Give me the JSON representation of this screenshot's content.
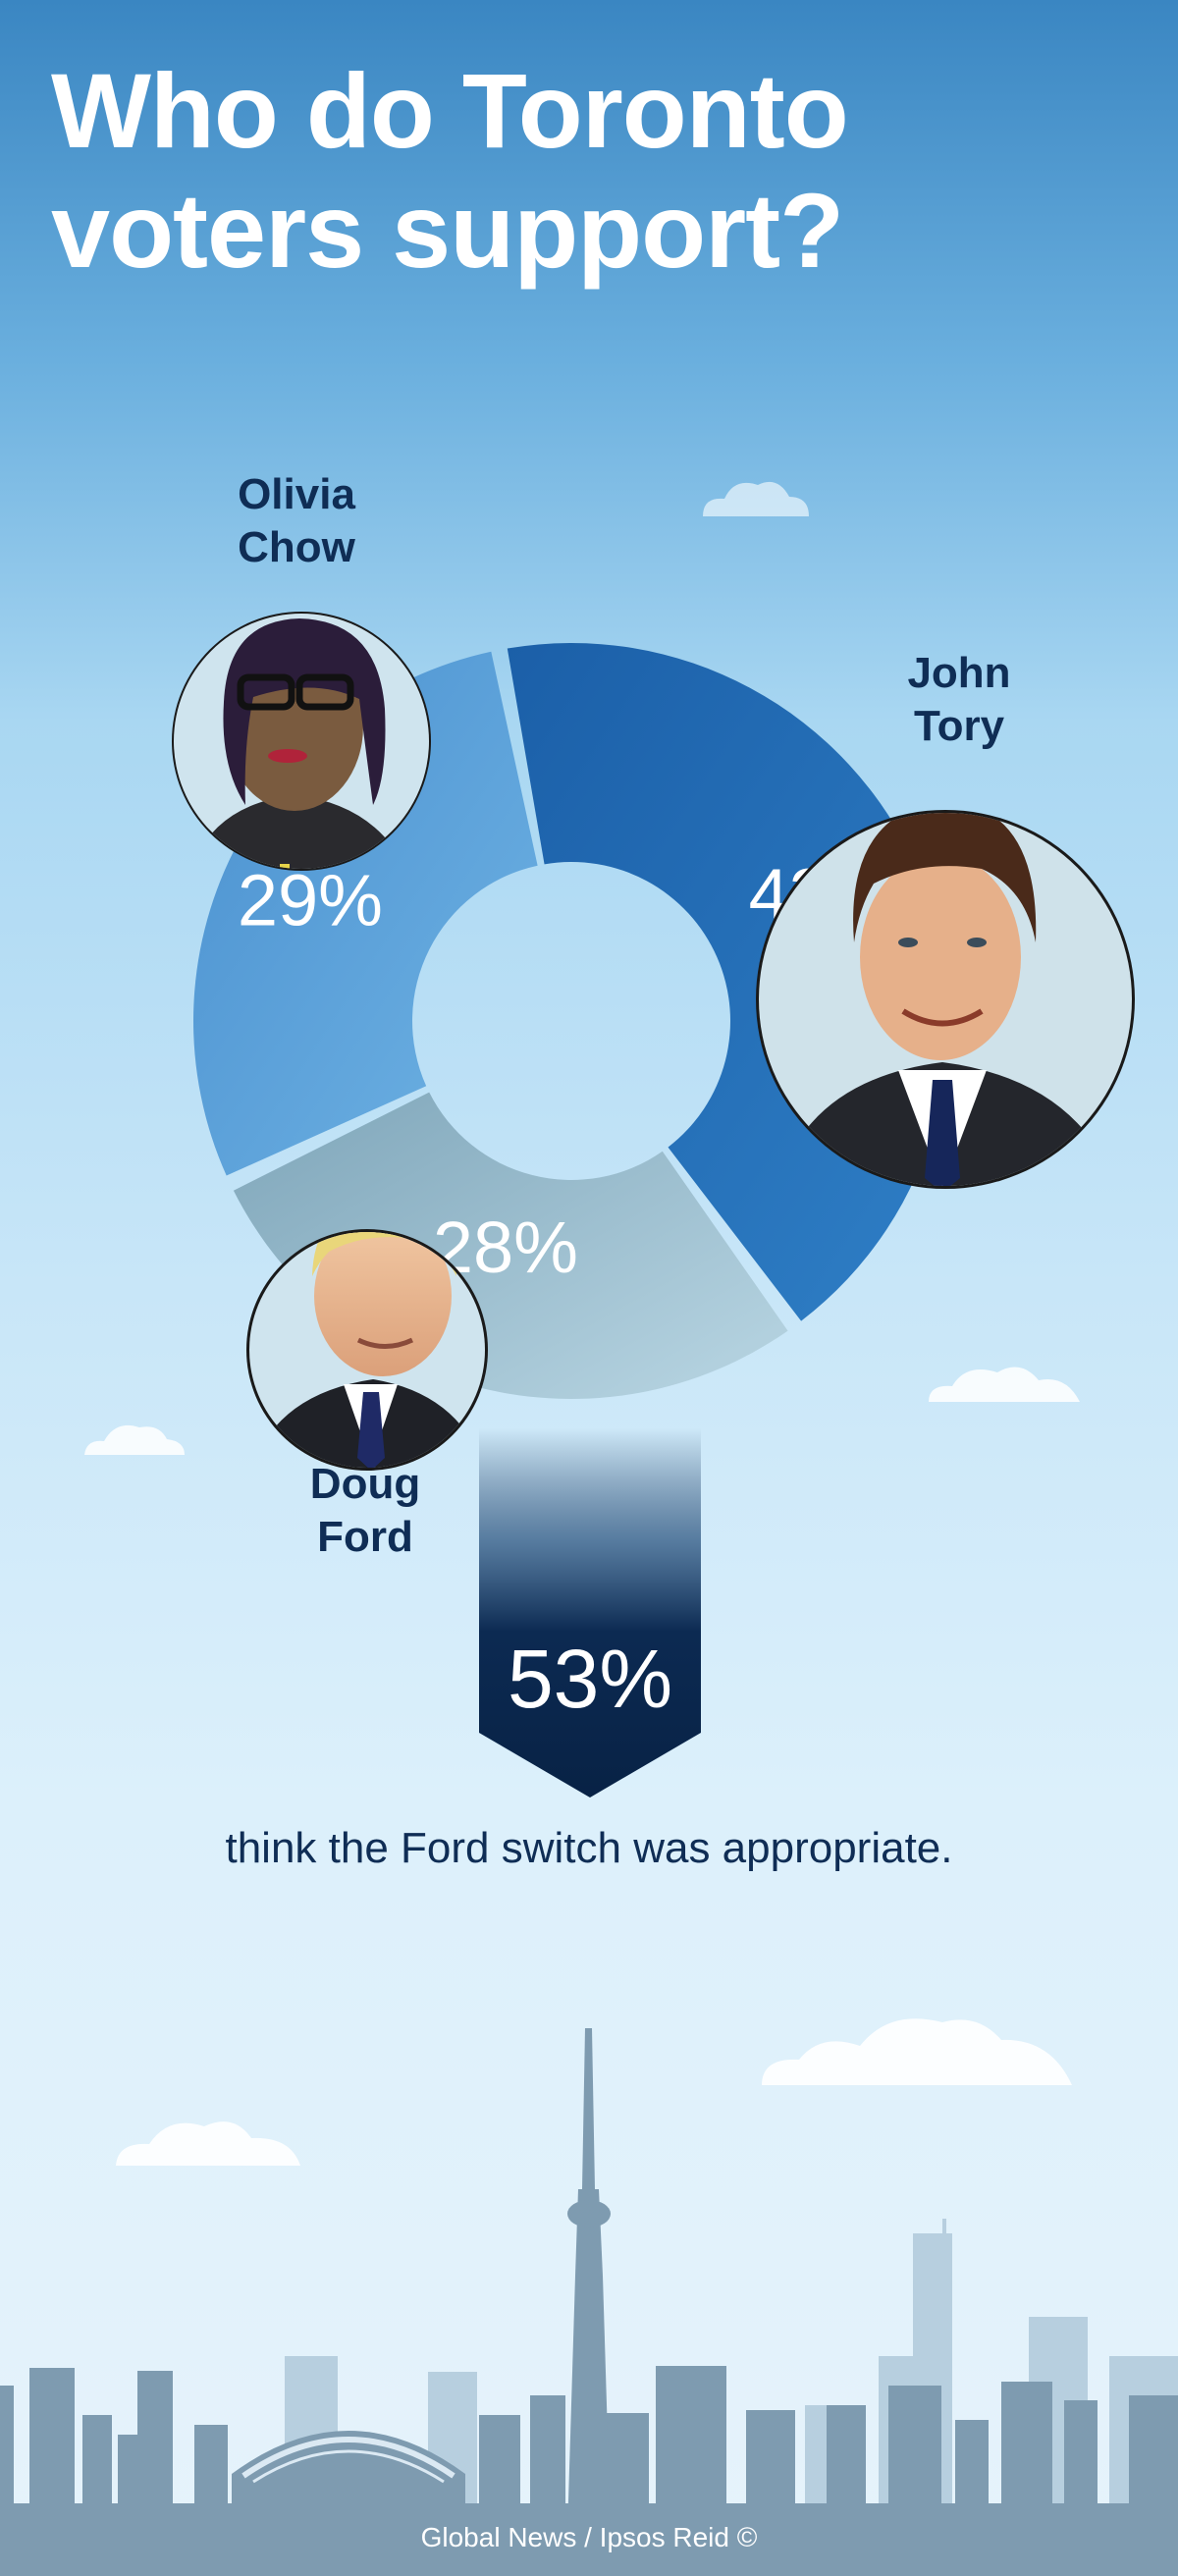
{
  "title": {
    "line1": "Who do Toronto",
    "line2": "voters support?"
  },
  "chart_data": {
    "type": "pie",
    "variant": "donut",
    "slices": [
      {
        "label": "John Tory",
        "value": 43,
        "display": "43%",
        "color": "#2b72b9"
      },
      {
        "label": "Doug Ford",
        "value": 28,
        "display": "28%",
        "color": "#9fc3d3"
      },
      {
        "label": "Olivia Chow",
        "value": 29,
        "display": "29%",
        "color": "#5aa3db"
      }
    ]
  },
  "candidates": {
    "chow": {
      "first": "Olivia",
      "last": "Chow"
    },
    "tory": {
      "first": "John",
      "last": "Tory"
    },
    "ford": {
      "first": "Doug",
      "last": "Ford"
    }
  },
  "stat": {
    "value": "53%",
    "caption": "think the Ford switch was appropriate."
  },
  "credit": "Global News / Ipsos Reid ©"
}
